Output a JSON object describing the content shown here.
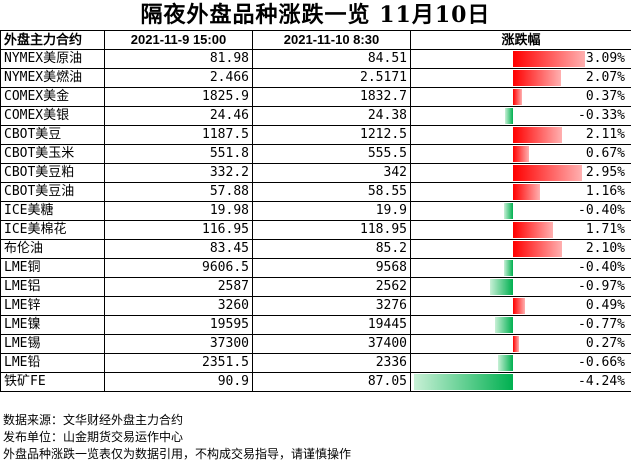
{
  "title": "隔夜外盘品种涨跌一览 11月10日",
  "headers": {
    "name": "外盘主力合约",
    "prev": "2021-11-9 15:00",
    "curr": "2021-11-10 8:30",
    "change": "涨跌幅"
  },
  "colors": {
    "up": "#ff0000",
    "down": "#00b050"
  },
  "rows": [
    {
      "name": "NYMEX美原油",
      "prev": "81.98",
      "curr": "84.51",
      "pct_text": "3.09%",
      "pct": 3.09
    },
    {
      "name": "NYMEX美燃油",
      "prev": "2.466",
      "curr": "2.5171",
      "pct_text": "2.07%",
      "pct": 2.07
    },
    {
      "name": "COMEX美金",
      "prev": "1825.9",
      "curr": "1832.7",
      "pct_text": "0.37%",
      "pct": 0.37
    },
    {
      "name": "COMEX美银",
      "prev": "24.46",
      "curr": "24.38",
      "pct_text": "-0.33%",
      "pct": -0.33
    },
    {
      "name": "CBOT美豆",
      "prev": "1187.5",
      "curr": "1212.5",
      "pct_text": "2.11%",
      "pct": 2.11
    },
    {
      "name": "CBOT美玉米",
      "prev": "551.8",
      "curr": "555.5",
      "pct_text": "0.67%",
      "pct": 0.67
    },
    {
      "name": "CBOT美豆粕",
      "prev": "332.2",
      "curr": "342",
      "pct_text": "2.95%",
      "pct": 2.95
    },
    {
      "name": "CBOT美豆油",
      "prev": "57.88",
      "curr": "58.55",
      "pct_text": "1.16%",
      "pct": 1.16
    },
    {
      "name": "ICE美糖",
      "prev": "19.98",
      "curr": "19.9",
      "pct_text": "-0.40%",
      "pct": -0.4
    },
    {
      "name": "ICE美棉花",
      "prev": "116.95",
      "curr": "118.95",
      "pct_text": "1.71%",
      "pct": 1.71
    },
    {
      "name": "布伦油",
      "prev": "83.45",
      "curr": "85.2",
      "pct_text": "2.10%",
      "pct": 2.1
    },
    {
      "name": "LME铜",
      "prev": "9606.5",
      "curr": "9568",
      "pct_text": "-0.40%",
      "pct": -0.4
    },
    {
      "name": "LME铝",
      "prev": "2587",
      "curr": "2562",
      "pct_text": "-0.97%",
      "pct": -0.97
    },
    {
      "name": "LME锌",
      "prev": "3260",
      "curr": "3276",
      "pct_text": "0.49%",
      "pct": 0.49
    },
    {
      "name": "LME镍",
      "prev": "19595",
      "curr": "19445",
      "pct_text": "-0.77%",
      "pct": -0.77
    },
    {
      "name": "LME锡",
      "prev": "37300",
      "curr": "37400",
      "pct_text": "0.27%",
      "pct": 0.27
    },
    {
      "name": "LME铅",
      "prev": "2351.5",
      "curr": "2336",
      "pct_text": "-0.66%",
      "pct": -0.66
    },
    {
      "name": "铁矿FE",
      "prev": "90.9",
      "curr": "87.05",
      "pct_text": "-4.24%",
      "pct": -4.24
    }
  ],
  "footer": {
    "source": "数据来源：文华财经外盘主力合约",
    "publisher": "发布单位：山金期货交易运作中心",
    "disclaimer": "外盘品种涨跌一览表仅为数据引用，不构成交易指导，请谨慎操作"
  }
}
